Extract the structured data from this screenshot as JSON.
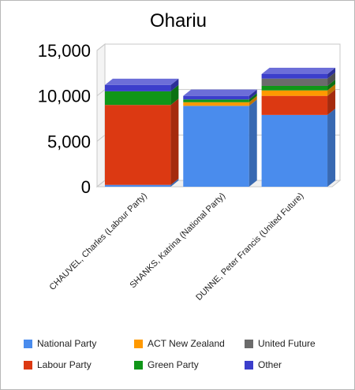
{
  "chart_data": {
    "type": "bar",
    "stacked": true,
    "three_d": true,
    "title": "Ohariu",
    "categories": [
      "CHAUVEL, Charles (Labour Party)",
      "SHANKS, Katrina (National Party)",
      "DUNNE, Peter Francis (United Future)"
    ],
    "yticks": [
      "0",
      "5,000",
      "10,000",
      "15,000"
    ],
    "ylim": [
      0,
      15000
    ],
    "series": [
      {
        "name": "National Party",
        "color": "#4a8ced",
        "values": [
          200,
          8900,
          7900
        ]
      },
      {
        "name": "Labour Party",
        "color": "#dc3912",
        "values": [
          8800,
          0,
          2100
        ]
      },
      {
        "name": "ACT New Zealand",
        "color": "#ff9900",
        "values": [
          0,
          400,
          600
        ]
      },
      {
        "name": "Green Party",
        "color": "#109618",
        "values": [
          1500,
          300,
          500
        ]
      },
      {
        "name": "United Future",
        "color": "#6b6b6b",
        "values": [
          0,
          0,
          800
        ]
      },
      {
        "name": "Other",
        "color": "#3b3ecb",
        "values": [
          700,
          400,
          500
        ]
      }
    ],
    "legend_position": "bottom",
    "legend_order": [
      "National Party",
      "ACT New Zealand",
      "United Future",
      "Labour Party",
      "Green Party",
      "Other"
    ],
    "grid": true
  }
}
